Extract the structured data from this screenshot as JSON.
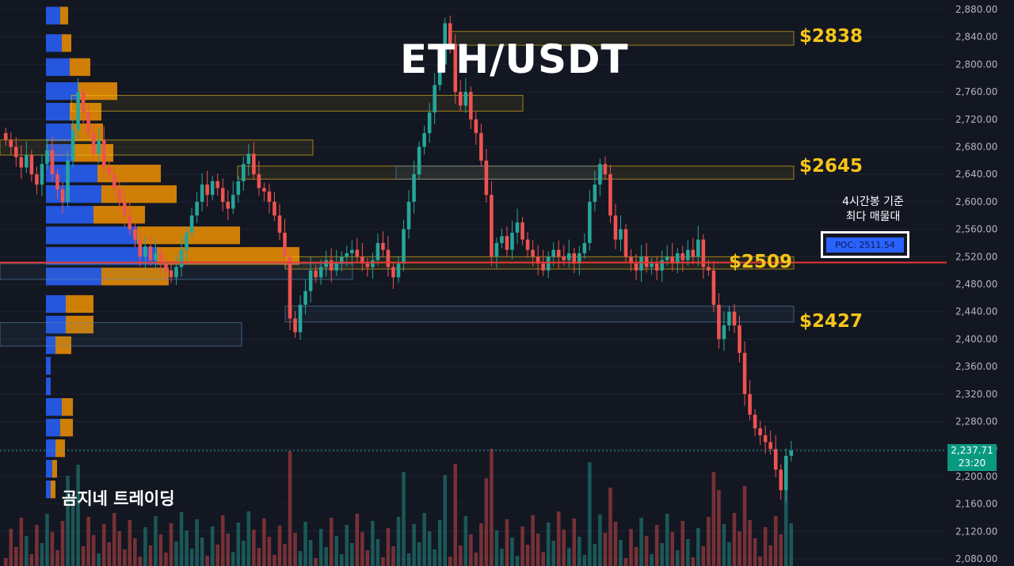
{
  "header": {
    "title": "ETH/USDT",
    "watermark": "곰지네 트레이딩"
  },
  "levels": [
    {
      "label": "$2838",
      "value": 2838
    },
    {
      "label": "$2645",
      "value": 2645
    },
    {
      "label": "$2509",
      "value": 2509
    },
    {
      "label": "$2427",
      "value": 2427
    }
  ],
  "annotation": {
    "line1": "4시간봉 기준",
    "line2": "최다 매물대",
    "poc_label": "POC: 2511.54",
    "poc_value": 2511.54
  },
  "current_price": {
    "price": "2,237.71",
    "countdown": "23:20",
    "value": 2237.71
  },
  "colors": {
    "background": "#131722",
    "up": "#26a69a",
    "down": "#ef5350",
    "level_text": "#f5c518",
    "poc_line": "#e53935",
    "profile_up": "#2962ff",
    "profile_down": "#ff9800"
  },
  "chart_data": {
    "type": "candlestick",
    "y_axis": {
      "min": 2080,
      "max": 2880,
      "step": 40,
      "tick_labels": [
        "2,880.00",
        "2,840.00",
        "2,800.00",
        "2,760.00",
        "2,720.00",
        "2,680.00",
        "2,640.00",
        "2,600.00",
        "2,560.00",
        "2,520.00",
        "2,480.00",
        "2,440.00",
        "2,400.00",
        "2,360.00",
        "2,320.00",
        "2,280.00",
        "2,240.00",
        "2,200.00",
        "2,160.00",
        "2,120.00",
        "2,080.00"
      ]
    },
    "candles_close": [
      2690,
      2680,
      2665,
      2650,
      2668,
      2640,
      2625,
      2655,
      2675,
      2640,
      2618,
      2600,
      2660,
      2705,
      2760,
      2730,
      2700,
      2670,
      2690,
      2650,
      2640,
      2620,
      2600,
      2580,
      2560,
      2545,
      2520,
      2535,
      2515,
      2525,
      2510,
      2500,
      2490,
      2505,
      2530,
      2555,
      2580,
      2600,
      2625,
      2610,
      2630,
      2620,
      2600,
      2590,
      2610,
      2630,
      2655,
      2670,
      2640,
      2620,
      2615,
      2600,
      2580,
      2555,
      2520,
      2430,
      2410,
      2450,
      2470,
      2500,
      2490,
      2505,
      2515,
      2500,
      2510,
      2520,
      2525,
      2530,
      2520,
      2510,
      2505,
      2515,
      2540,
      2530,
      2505,
      2490,
      2510,
      2560,
      2600,
      2640,
      2680,
      2700,
      2730,
      2770,
      2800,
      2860,
      2830,
      2760,
      2740,
      2760,
      2720,
      2700,
      2660,
      2610,
      2520,
      2540,
      2550,
      2530,
      2555,
      2570,
      2545,
      2530,
      2520,
      2510,
      2500,
      2520,
      2530,
      2520,
      2515,
      2525,
      2510,
      2525,
      2540,
      2600,
      2625,
      2655,
      2640,
      2580,
      2545,
      2560,
      2520,
      2510,
      2500,
      2520,
      2505,
      2510,
      2500,
      2515,
      2520,
      2510,
      2525,
      2515,
      2530,
      2520,
      2545,
      2505,
      2500,
      2450,
      2400,
      2420,
      2440,
      2420,
      2380,
      2320,
      2290,
      2270,
      2260,
      2250,
      2240,
      2210,
      2180,
      2230,
      2237.71
    ]
  }
}
